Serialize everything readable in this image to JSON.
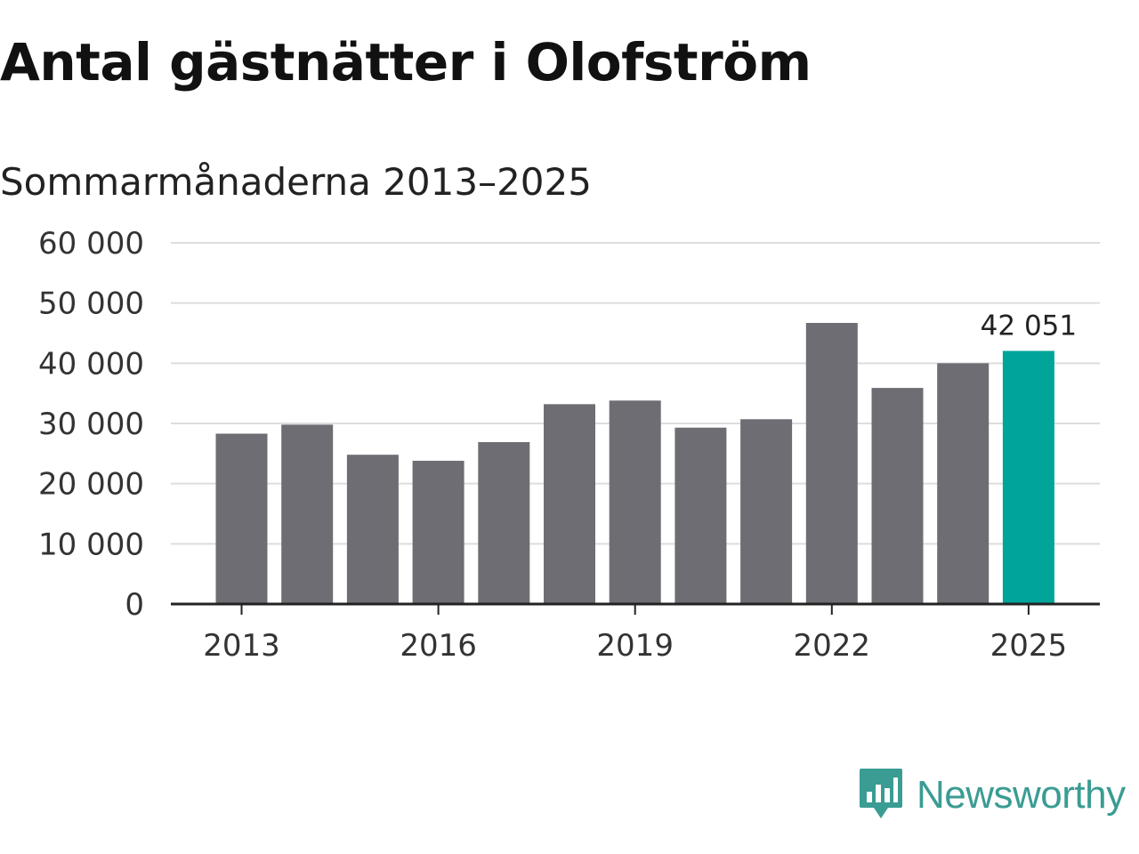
{
  "chart_data": {
    "type": "bar",
    "title": "Antal gästnätter i Olofström",
    "subtitle": "Sommarmånaderna 2013–2025",
    "categories": [
      "2013",
      "2014",
      "2015",
      "2016",
      "2017",
      "2018",
      "2019",
      "2020",
      "2021",
      "2022",
      "2023",
      "2024",
      "2025"
    ],
    "values": [
      28300,
      29800,
      24800,
      23800,
      26900,
      33200,
      33800,
      29300,
      30700,
      46700,
      35900,
      40000,
      42051
    ],
    "x_tick_labels": [
      "2013",
      "2016",
      "2019",
      "2022",
      "2025"
    ],
    "y_tick_labels": [
      "0",
      "10 000",
      "20 000",
      "30 000",
      "40 000",
      "50 000",
      "60 000"
    ],
    "ylim": [
      0,
      60000
    ],
    "grid": true,
    "highlight_index": 12,
    "highlight_label": "42 051",
    "colors": {
      "bar": "#6e6d73",
      "highlight": "#00a499",
      "grid": "#dddddd",
      "axis": "#222222"
    }
  },
  "brand": {
    "name": "Newsworthy",
    "color": "#3a9c93",
    "icon": "newsworthy-logo-icon"
  }
}
